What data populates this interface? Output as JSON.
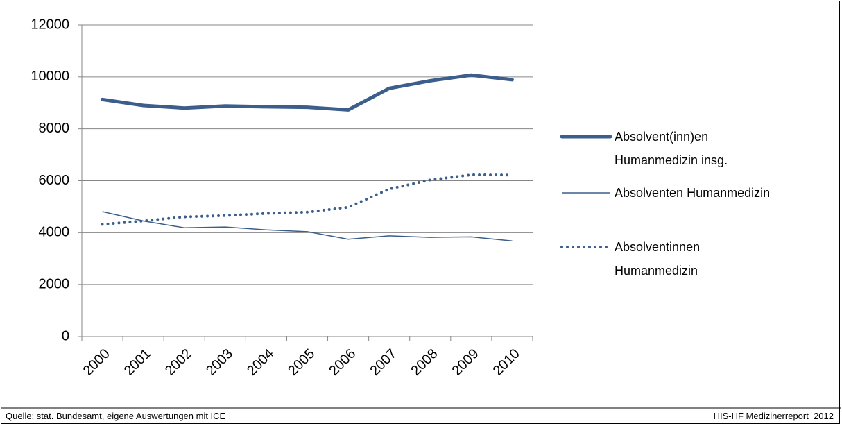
{
  "chart_data": {
    "type": "line",
    "categories": [
      "2000",
      "2001",
      "2002",
      "2003",
      "2004",
      "2005",
      "2006",
      "2007",
      "2008",
      "2009",
      "2010"
    ],
    "series": [
      {
        "name": "Absolvent(inn)en Humanmedizin insg.",
        "color": "#3b5e8c",
        "style": "thick",
        "values": [
          9130,
          8900,
          8800,
          8880,
          8850,
          8830,
          8730,
          9560,
          9850,
          10070,
          9890
        ]
      },
      {
        "name": "Absolventen Humanmedizin",
        "color": "#3b5e8c",
        "style": "thin",
        "values": [
          4810,
          4450,
          4190,
          4220,
          4110,
          4040,
          3750,
          3880,
          3820,
          3840,
          3680
        ]
      },
      {
        "name": "Absolventinnen Humanmedizin",
        "color": "#3b5e8c",
        "style": "dotted",
        "values": [
          4320,
          4450,
          4610,
          4660,
          4740,
          4790,
          4980,
          5680,
          6030,
          6230,
          6220
        ]
      }
    ],
    "ylim": [
      0,
      12000
    ],
    "yticks": [
      0,
      2000,
      4000,
      6000,
      8000,
      10000,
      12000
    ],
    "grid": true,
    "legend": "right"
  },
  "footer": {
    "source": "Quelle: stat. Bundesamt, eigene Auswertungen mit ICE",
    "report": "HIS-HF Medizinerreport  2012"
  }
}
